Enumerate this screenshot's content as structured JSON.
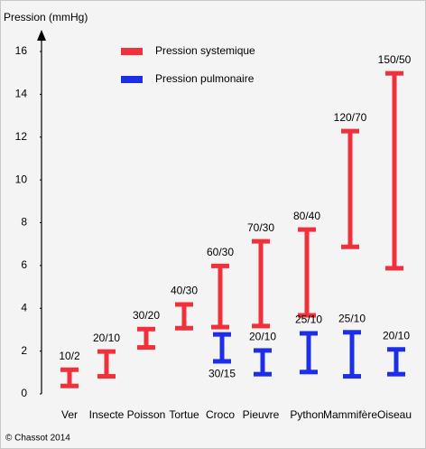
{
  "chart_data": {
    "type": "range-bar",
    "y_label": "Pression (mmHg)",
    "categories": [
      "Ver",
      "Insecte",
      "Poisson",
      "Tortue",
      "Croco",
      "Pieuvre",
      "Python",
      "Mammifère",
      "Oiseau"
    ],
    "series": [
      {
        "name": "Pression systemique",
        "color": "#f0303a",
        "values": [
          [
            0.35,
            1.15
          ],
          [
            0.8,
            2.0
          ],
          [
            2.15,
            3.05
          ],
          [
            3.05,
            4.2
          ],
          [
            3.1,
            6.0
          ],
          [
            3.15,
            7.15
          ],
          [
            3.65,
            7.7
          ],
          [
            6.85,
            12.3
          ],
          [
            5.85,
            15.0
          ]
        ],
        "labels": [
          "10/2",
          "20/10",
          "30/20",
          "40/30",
          "60/30",
          "70/30",
          "80/40",
          "120/70",
          "150/50"
        ]
      },
      {
        "name": "Pression pulmonaire",
        "color": "#1c2ee8",
        "values": [
          null,
          null,
          null,
          null,
          [
            1.5,
            2.8
          ],
          [
            0.9,
            2.05
          ],
          [
            1.0,
            2.85
          ],
          [
            0.8,
            2.9
          ],
          [
            0.9,
            2.1
          ]
        ],
        "labels": [
          null,
          null,
          null,
          null,
          "30/15",
          "20/10",
          "25/10",
          "25/10",
          "20/10"
        ]
      }
    ],
    "ylim": [
      0,
      16
    ],
    "yticks": [
      0,
      2,
      4,
      6,
      8,
      10,
      12,
      14,
      16
    ],
    "credit": "© Chassot 2014"
  }
}
